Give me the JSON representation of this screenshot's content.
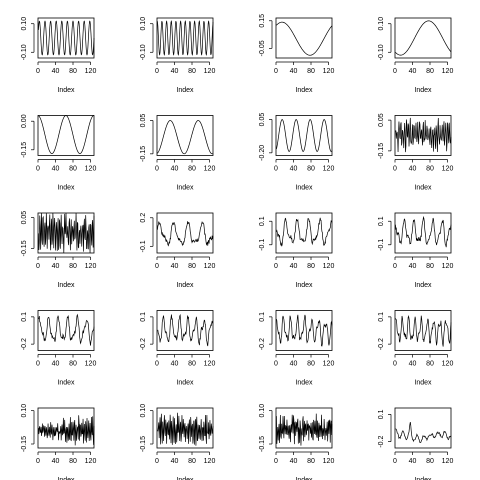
{
  "figure": {
    "rows": 5,
    "cols": 4
  },
  "chart_data": [
    {
      "type": "line",
      "shape": "sine",
      "params": {
        "amp": 0.12,
        "offset": 0,
        "cycles": 10,
        "phase": 0
      },
      "xlabel": "Index",
      "ylim": [
        -0.14,
        0.14
      ],
      "yticks": [
        -0.1,
        0.1
      ],
      "yticklabels": [
        "-0.10",
        "0.10"
      ],
      "xlim": [
        0,
        128
      ],
      "xticks": [
        0,
        40,
        80,
        120
      ],
      "xticklabels": [
        "0",
        "40",
        "80",
        "120"
      ]
    },
    {
      "type": "line",
      "shape": "sine",
      "params": {
        "amp": 0.12,
        "offset": 0,
        "cycles": 12,
        "phase": 1.2
      },
      "xlabel": "Index",
      "ylim": [
        -0.14,
        0.14
      ],
      "yticks": [
        -0.1,
        0.1
      ],
      "yticklabels": [
        "-0.10",
        "0.10"
      ],
      "xlim": [
        0,
        128
      ],
      "xticks": [
        0,
        40,
        80,
        120
      ],
      "xticklabels": [
        "0",
        "40",
        "80",
        "120"
      ]
    },
    {
      "type": "line",
      "shape": "sine",
      "params": {
        "amp": 0.12,
        "offset": 0.02,
        "cycles": 1,
        "phase": 0.9
      },
      "xlabel": "Index",
      "ylim": [
        -0.12,
        0.17
      ],
      "yticks": [
        -0.05,
        0.15
      ],
      "yticklabels": [
        "-0.05",
        "0.15"
      ],
      "xlim": [
        0,
        128
      ],
      "xticks": [
        0,
        40,
        80,
        120
      ],
      "xticklabels": [
        "0",
        "40",
        "80",
        "120"
      ]
    },
    {
      "type": "line",
      "shape": "sine",
      "params": {
        "amp": 0.12,
        "offset": 0,
        "cycles": 1,
        "phase": -2.2
      },
      "xlabel": "Index",
      "ylim": [
        -0.14,
        0.14
      ],
      "yticks": [
        -0.1,
        0.1
      ],
      "yticklabels": [
        "-0.10",
        "0.10"
      ],
      "xlim": [
        0,
        128
      ],
      "xticks": [
        0,
        40,
        80,
        120
      ],
      "xticklabels": [
        "0",
        "40",
        "80",
        "120"
      ]
    },
    {
      "type": "line",
      "shape": "sine",
      "params": {
        "amp": 0.1,
        "offset": -0.07,
        "cycles": 2,
        "phase": 1.6
      },
      "xlabel": "Index",
      "ylim": [
        -0.18,
        0.03
      ],
      "yticks": [
        -0.15,
        0.0
      ],
      "yticklabels": [
        "-0.15",
        "0.00"
      ],
      "xlim": [
        0,
        128
      ],
      "xticks": [
        0,
        40,
        80,
        120
      ],
      "xticklabels": [
        "0",
        "40",
        "80",
        "120"
      ]
    },
    {
      "type": "line",
      "shape": "sine",
      "params": {
        "amp": 0.1,
        "offset": -0.05,
        "cycles": 2,
        "phase": -1.4
      },
      "xlabel": "Index",
      "ylim": [
        -0.16,
        0.08
      ],
      "yticks": [
        -0.15,
        0.05
      ],
      "yticklabels": [
        "-0.15",
        "0.05"
      ],
      "xlim": [
        0,
        128
      ],
      "xticks": [
        0,
        40,
        80,
        120
      ],
      "xticklabels": [
        "0",
        "40",
        "80",
        "120"
      ]
    },
    {
      "type": "line",
      "shape": "sine",
      "params": {
        "amp": 0.12,
        "offset": -0.07,
        "cycles": 4,
        "phase": -1.2
      },
      "xlabel": "Index",
      "ylim": [
        -0.22,
        0.08
      ],
      "yticks": [
        -0.2,
        0.05
      ],
      "yticklabels": [
        "-0.20",
        "0.05"
      ],
      "xlim": [
        0,
        128
      ],
      "xticks": [
        0,
        40,
        80,
        120
      ],
      "xticklabels": [
        "0",
        "40",
        "80",
        "120"
      ]
    },
    {
      "type": "line",
      "shape": "noise",
      "params": {
        "amp": 0.11,
        "offset": -0.05,
        "cycles": 30,
        "phase": 0.4
      },
      "xlabel": "Index",
      "ylim": [
        -0.18,
        0.08
      ],
      "yticks": [
        -0.15,
        0.05
      ],
      "yticklabels": [
        "-0.15",
        "0.05"
      ],
      "xlim": [
        0,
        128
      ],
      "xticks": [
        0,
        40,
        80,
        120
      ],
      "xticklabels": [
        "0",
        "40",
        "80",
        "120"
      ]
    },
    {
      "type": "line",
      "shape": "noise",
      "params": {
        "amp": 0.14,
        "offset": -0.05,
        "cycles": 34,
        "phase": 1.0
      },
      "xlabel": "Index",
      "ylim": [
        -0.18,
        0.08
      ],
      "yticks": [
        -0.15,
        0.05
      ],
      "yticklabels": [
        "-0.15",
        "0.05"
      ],
      "xlim": [
        0,
        128
      ],
      "xticks": [
        0,
        40,
        80,
        120
      ],
      "xticklabels": [
        "0",
        "40",
        "80",
        "120"
      ]
    },
    {
      "type": "line",
      "shape": "multi",
      "params": {
        "amp": 0.14,
        "offset": 0.02,
        "cycles": 4,
        "phase": 0.2
      },
      "xlabel": "Index",
      "ylim": [
        -0.17,
        0.25
      ],
      "yticks": [
        -0.1,
        0.2
      ],
      "yticklabels": [
        "-0.1",
        "0.2"
      ],
      "xlim": [
        0,
        128
      ],
      "xticks": [
        0,
        40,
        80,
        120
      ],
      "xticklabels": [
        "0",
        "40",
        "80",
        "120"
      ]
    },
    {
      "type": "line",
      "shape": "multi",
      "params": {
        "amp": 0.12,
        "offset": 0,
        "cycles": 5,
        "phase": 2.2
      },
      "xlabel": "Index",
      "ylim": [
        -0.17,
        0.17
      ],
      "yticks": [
        -0.1,
        0.1
      ],
      "yticklabels": [
        "-0.1",
        "0.1"
      ],
      "xlim": [
        0,
        128
      ],
      "xticks": [
        0,
        40,
        80,
        120
      ],
      "xticklabels": [
        "0",
        "40",
        "80",
        "120"
      ]
    },
    {
      "type": "line",
      "shape": "multi",
      "params": {
        "amp": 0.12,
        "offset": 0,
        "cycles": 6,
        "phase": 1.4
      },
      "xlabel": "Index",
      "ylim": [
        -0.17,
        0.17
      ],
      "yticks": [
        -0.1,
        0.1
      ],
      "yticklabels": [
        "-0.1",
        "0.1"
      ],
      "xlim": [
        0,
        128
      ],
      "xticks": [
        0,
        40,
        80,
        120
      ],
      "xticklabels": [
        "0",
        "40",
        "80",
        "120"
      ]
    },
    {
      "type": "line",
      "shape": "multi",
      "params": {
        "amp": 0.16,
        "offset": -0.05,
        "cycles": 6,
        "phase": 0.5
      },
      "xlabel": "Index",
      "ylim": [
        -0.27,
        0.17
      ],
      "yticks": [
        -0.2,
        0.1
      ],
      "yticklabels": [
        "-0.2",
        "0.1"
      ],
      "xlim": [
        0,
        128
      ],
      "xticks": [
        0,
        40,
        80,
        120
      ],
      "xticklabels": [
        "0",
        "40",
        "80",
        "120"
      ]
    },
    {
      "type": "line",
      "shape": "multi",
      "params": {
        "amp": 0.16,
        "offset": -0.05,
        "cycles": 7,
        "phase": 2.6
      },
      "xlabel": "Index",
      "ylim": [
        -0.27,
        0.17
      ],
      "yticks": [
        -0.2,
        0.1
      ],
      "yticklabels": [
        "-0.2",
        "0.1"
      ],
      "xlim": [
        0,
        128
      ],
      "xticks": [
        0,
        40,
        80,
        120
      ],
      "xticklabels": [
        "0",
        "40",
        "80",
        "120"
      ]
    },
    {
      "type": "line",
      "shape": "multi",
      "params": {
        "amp": 0.16,
        "offset": -0.05,
        "cycles": 8,
        "phase": 1.1
      },
      "xlabel": "Index",
      "ylim": [
        -0.27,
        0.17
      ],
      "yticks": [
        -0.2,
        0.1
      ],
      "yticklabels": [
        "-0.2",
        "0.1"
      ],
      "xlim": [
        0,
        128
      ],
      "xticks": [
        0,
        40,
        80,
        120
      ],
      "xticklabels": [
        "0",
        "40",
        "80",
        "120"
      ]
    },
    {
      "type": "line",
      "shape": "multi",
      "params": {
        "amp": 0.16,
        "offset": -0.05,
        "cycles": 9,
        "phase": 0.3
      },
      "xlabel": "Index",
      "ylim": [
        -0.27,
        0.17
      ],
      "yticks": [
        -0.2,
        0.1
      ],
      "yticklabels": [
        "-0.2",
        "0.1"
      ],
      "xlim": [
        0,
        128
      ],
      "xticks": [
        0,
        40,
        80,
        120
      ],
      "xticklabels": [
        "0",
        "40",
        "80",
        "120"
      ]
    },
    {
      "type": "line",
      "shape": "burst",
      "params": {
        "amp": 0.12,
        "offset": -0.05,
        "cycles": 40,
        "phase": 0.7
      },
      "xlabel": "Index",
      "ylim": [
        -0.18,
        0.12
      ],
      "yticks": [
        -0.15,
        0.1
      ],
      "yticklabels": [
        "-0.15",
        "0.10"
      ],
      "xlim": [
        0,
        128
      ],
      "xticks": [
        0,
        40,
        80,
        120
      ],
      "xticklabels": [
        "0",
        "40",
        "80",
        "120"
      ]
    },
    {
      "type": "line",
      "shape": "noise",
      "params": {
        "amp": 0.12,
        "offset": -0.04,
        "cycles": 38,
        "phase": 1.9
      },
      "xlabel": "Index",
      "ylim": [
        -0.18,
        0.12
      ],
      "yticks": [
        -0.15,
        0.1
      ],
      "yticklabels": [
        "-0.15",
        "0.10"
      ],
      "xlim": [
        0,
        128
      ],
      "xticks": [
        0,
        40,
        80,
        120
      ],
      "xticklabels": [
        "0",
        "40",
        "80",
        "120"
      ]
    },
    {
      "type": "line",
      "shape": "noise",
      "params": {
        "amp": 0.12,
        "offset": -0.04,
        "cycles": 42,
        "phase": 0.1
      },
      "xlabel": "Index",
      "ylim": [
        -0.18,
        0.12
      ],
      "yticks": [
        -0.15,
        0.1
      ],
      "yticklabels": [
        "-0.15",
        "0.10"
      ],
      "xlim": [
        0,
        128
      ],
      "xticks": [
        0,
        40,
        80,
        120
      ],
      "xticklabels": [
        "0",
        "40",
        "80",
        "120"
      ]
    },
    {
      "type": "line",
      "shape": "walk",
      "params": {
        "amp": 0.1,
        "offset": -0.1,
        "cycles": 8,
        "phase": 0.6
      },
      "xlabel": "Index",
      "ylim": [
        -0.27,
        0.17
      ],
      "yticks": [
        -0.2,
        0.1
      ],
      "yticklabels": [
        "-0.2",
        "0.1"
      ],
      "xlim": [
        0,
        128
      ],
      "xticks": [
        0,
        40,
        80,
        120
      ],
      "xticklabels": [
        "0",
        "40",
        "80",
        "120"
      ]
    }
  ]
}
